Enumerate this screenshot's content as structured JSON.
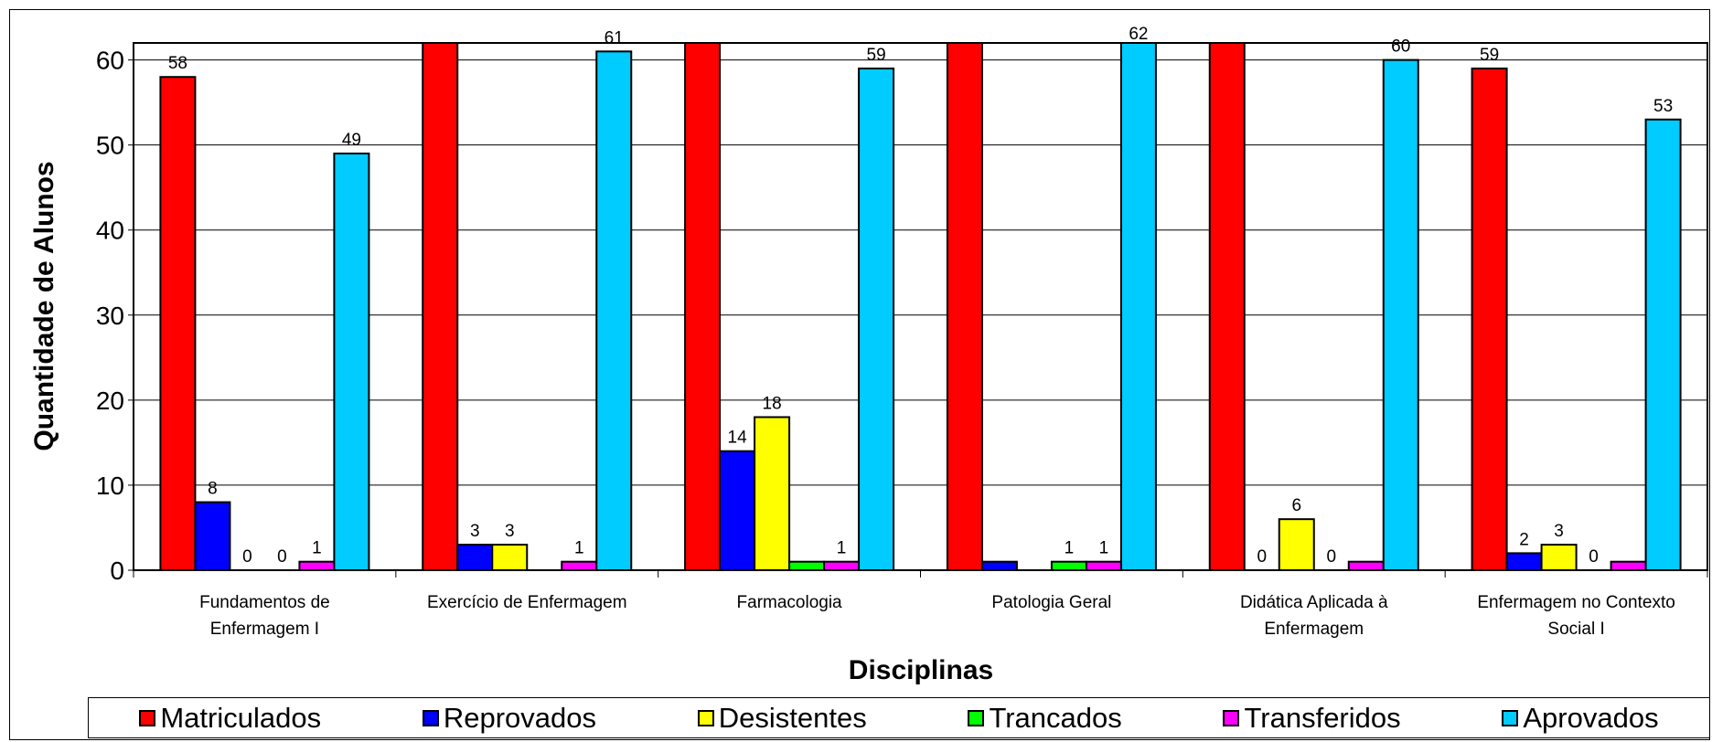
{
  "chart_data": {
    "type": "bar",
    "title": "",
    "xlabel": "Disciplinas",
    "ylabel": "Quantidade de Alunos",
    "ylim": [
      0,
      62
    ],
    "yticks": [
      "0",
      "10",
      "20",
      "30",
      "40",
      "50",
      "60"
    ],
    "grid": true,
    "legend_position": "bottom",
    "categories": [
      [
        "Fundamentos de",
        "Enfermagem I"
      ],
      [
        "Exercício de Enfermagem"
      ],
      [
        "Farmacologia"
      ],
      [
        "Patologia Geral"
      ],
      [
        "Didática Aplicada à",
        "Enfermagem"
      ],
      [
        "Enfermagem no Contexto",
        "Social I"
      ]
    ],
    "series": [
      {
        "name": "Matriculados",
        "color": "#ff0000",
        "values": [
          58,
          null,
          null,
          null,
          null,
          59
        ]
      },
      {
        "name": "Reprovados",
        "color": "#0000ff",
        "values": [
          8,
          3,
          14,
          1,
          0,
          2
        ]
      },
      {
        "name": "Desistentes",
        "color": "#ffff00",
        "values": [
          0,
          3,
          18,
          0,
          6,
          3
        ]
      },
      {
        "name": "Trancados",
        "color": "#00ff00",
        "values": [
          0,
          0,
          1,
          1,
          0,
          0
        ]
      },
      {
        "name": "Transferidos",
        "color": "#ff00ff",
        "values": [
          1,
          1,
          1,
          1,
          1,
          1
        ]
      },
      {
        "name": "Aprovados",
        "color": "#00ccff",
        "values": [
          49,
          61,
          59,
          62,
          60,
          53
        ]
      }
    ],
    "value_labels_hidden": [
      [
        false,
        false,
        false,
        false,
        false,
        false
      ],
      [
        false,
        false,
        false,
        true,
        false,
        false
      ],
      [
        false,
        false,
        false,
        true,
        false,
        false
      ],
      [
        false,
        true,
        true,
        false,
        false,
        false
      ],
      [
        false,
        false,
        false,
        false,
        true,
        true
      ],
      [
        false,
        false,
        false,
        false,
        false,
        false
      ]
    ]
  }
}
